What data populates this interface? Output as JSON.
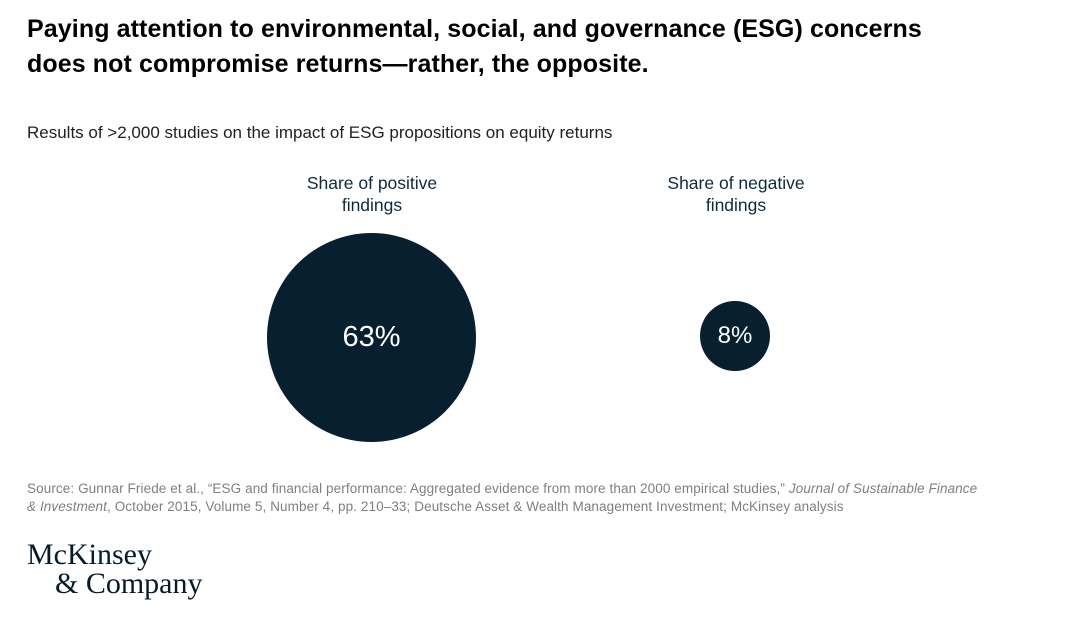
{
  "header": {
    "title_line1": "Paying attention to environmental, social, and governance (ESG) concerns",
    "title_line2": "does not compromise returns—rather, the opposite.",
    "subtitle": "Results of >2,000 studies on the impact of ESG propositions on equity returns"
  },
  "chart_data": {
    "type": "bubble",
    "title": "Results of >2,000 studies on the impact of ESG propositions on equity returns",
    "categories": [
      "Share of positive findings",
      "Share of negative findings"
    ],
    "values": [
      63,
      8
    ],
    "unit": "%",
    "value_labels": [
      "63%",
      "8%"
    ],
    "layout": "two area-proportional circles side by side, labels above, values centered in circles",
    "bubble_color": "#071f2e",
    "value_label_color": "#ffffff",
    "category_label_color": "#0e2a3f"
  },
  "chart": {
    "positive": {
      "label_line1": "Share of positive",
      "label_line2": "findings",
      "value": "63%"
    },
    "negative": {
      "label_line1": "Share of negative",
      "label_line2": "findings",
      "value": "8%"
    }
  },
  "source": {
    "line1_regular": "Source: Gunnar Friede et al., “ESG and financial performance: Aggregated evidence from more than 2000 empirical studies,” ",
    "line1_italic": "Journal of Sustainable Finance",
    "line2_italic": "& Investment",
    "line2_regular": ", October 2015, Volume 5, Number 4, pp. 210–33; Deutsche Asset & Wealth Management Investment; McKinsey analysis"
  },
  "logo": {
    "line1": "McKinsey",
    "line2": "& Company"
  },
  "colors": {
    "background": "#ffffff",
    "title_text": "#000000",
    "subtitle_text": "#212121",
    "source_text": "#7f7f7f",
    "logo_navy": "#051c2c",
    "bubble_navy": "#071f2e"
  }
}
